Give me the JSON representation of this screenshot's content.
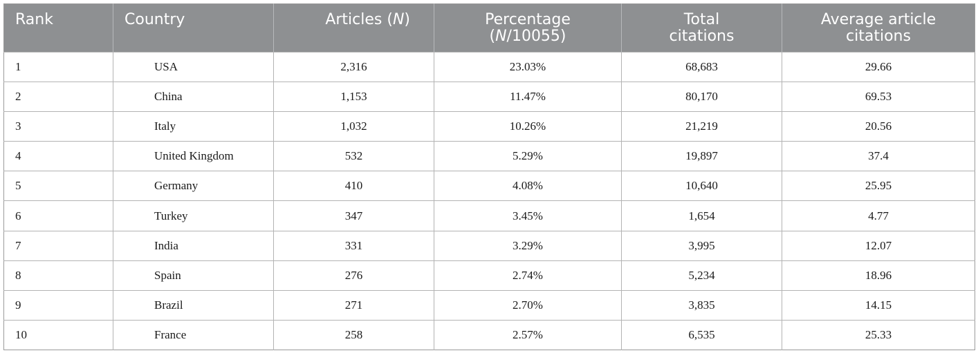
{
  "table": {
    "headers": {
      "rank": "Rank",
      "country": "Country",
      "articles_pre": "Articles (",
      "articles_n": "N",
      "articles_post": ")",
      "percentage_line1": "Percentage",
      "percentage_pre": "(",
      "percentage_n": "N",
      "percentage_post": "/10055)",
      "total_line1": "Total",
      "total_line2": "citations",
      "average_line1": "Average article",
      "average_line2": "citations"
    },
    "rows": [
      {
        "rank": "1",
        "country": "USA",
        "articles": "2,316",
        "percentage": "23.03%",
        "total_citations": "68,683",
        "average_citations": "29.66"
      },
      {
        "rank": "2",
        "country": "China",
        "articles": "1,153",
        "percentage": "11.47%",
        "total_citations": "80,170",
        "average_citations": "69.53"
      },
      {
        "rank": "3",
        "country": "Italy",
        "articles": "1,032",
        "percentage": "10.26%",
        "total_citations": "21,219",
        "average_citations": "20.56"
      },
      {
        "rank": "4",
        "country": "United Kingdom",
        "articles": "532",
        "percentage": "5.29%",
        "total_citations": "19,897",
        "average_citations": "37.4"
      },
      {
        "rank": "5",
        "country": "Germany",
        "articles": "410",
        "percentage": "4.08%",
        "total_citations": "10,640",
        "average_citations": "25.95"
      },
      {
        "rank": "6",
        "country": "Turkey",
        "articles": "347",
        "percentage": "3.45%",
        "total_citations": "1,654",
        "average_citations": "4.77"
      },
      {
        "rank": "7",
        "country": "India",
        "articles": "331",
        "percentage": "3.29%",
        "total_citations": "3,995",
        "average_citations": "12.07"
      },
      {
        "rank": "8",
        "country": "Spain",
        "articles": "276",
        "percentage": "2.74%",
        "total_citations": "5,234",
        "average_citations": "18.96"
      },
      {
        "rank": "9",
        "country": "Brazil",
        "articles": "271",
        "percentage": "2.70%",
        "total_citations": "3,835",
        "average_citations": "14.15"
      },
      {
        "rank": "10",
        "country": "France",
        "articles": "258",
        "percentage": "2.57%",
        "total_citations": "6,535",
        "average_citations": "25.33"
      }
    ]
  },
  "colors": {
    "header_background": "#8e9092",
    "header_text": "#ffffff",
    "grid_line": "#b3b3b3"
  }
}
